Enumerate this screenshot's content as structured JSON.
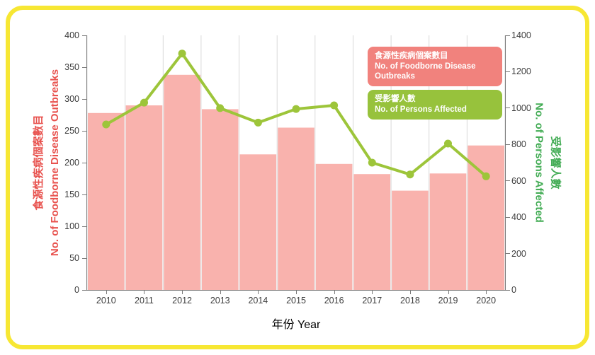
{
  "frame": {
    "border_color": "#f7e733",
    "background": "#ffffff"
  },
  "chart_data": {
    "type": "bar+line",
    "categories": [
      "2010",
      "2011",
      "2012",
      "2013",
      "2014",
      "2015",
      "2016",
      "2017",
      "2018",
      "2019",
      "2020"
    ],
    "series": [
      {
        "name_zh": "食源性疾病個案數目",
        "name_en": "No. of Foodborne Disease Outbreaks",
        "type": "bar",
        "axis": "left",
        "color": "#f9b2ad",
        "legend_color": "#f1827d",
        "values": [
          278,
          290,
          338,
          284,
          213,
          255,
          198,
          182,
          156,
          183,
          227
        ]
      },
      {
        "name_zh": "受影響人數",
        "name_en": "No. of Persons Affected",
        "type": "line",
        "axis": "right",
        "color": "#9dc53a",
        "legend_color": "#97c23c",
        "values": [
          910,
          1030,
          1300,
          1000,
          920,
          995,
          1015,
          700,
          635,
          805,
          625
        ]
      }
    ],
    "left_axis": {
      "label_zh": "食源性疾病個案數目",
      "label_en": "No. of Foodborne Disease Outbreaks",
      "color": "#e8534f",
      "min": 0,
      "max": 400,
      "step": 50
    },
    "right_axis": {
      "label_zh": "受影響人數",
      "label_en": "No. of Persons Affected",
      "color": "#43ac55",
      "min": 0,
      "max": 1400,
      "step": 200
    },
    "xlabel": "年份 Year",
    "grid": true,
    "grid_color": "#d9d9d9",
    "axis_line_color": "#7a7a7a",
    "legend_position": "top-right"
  }
}
